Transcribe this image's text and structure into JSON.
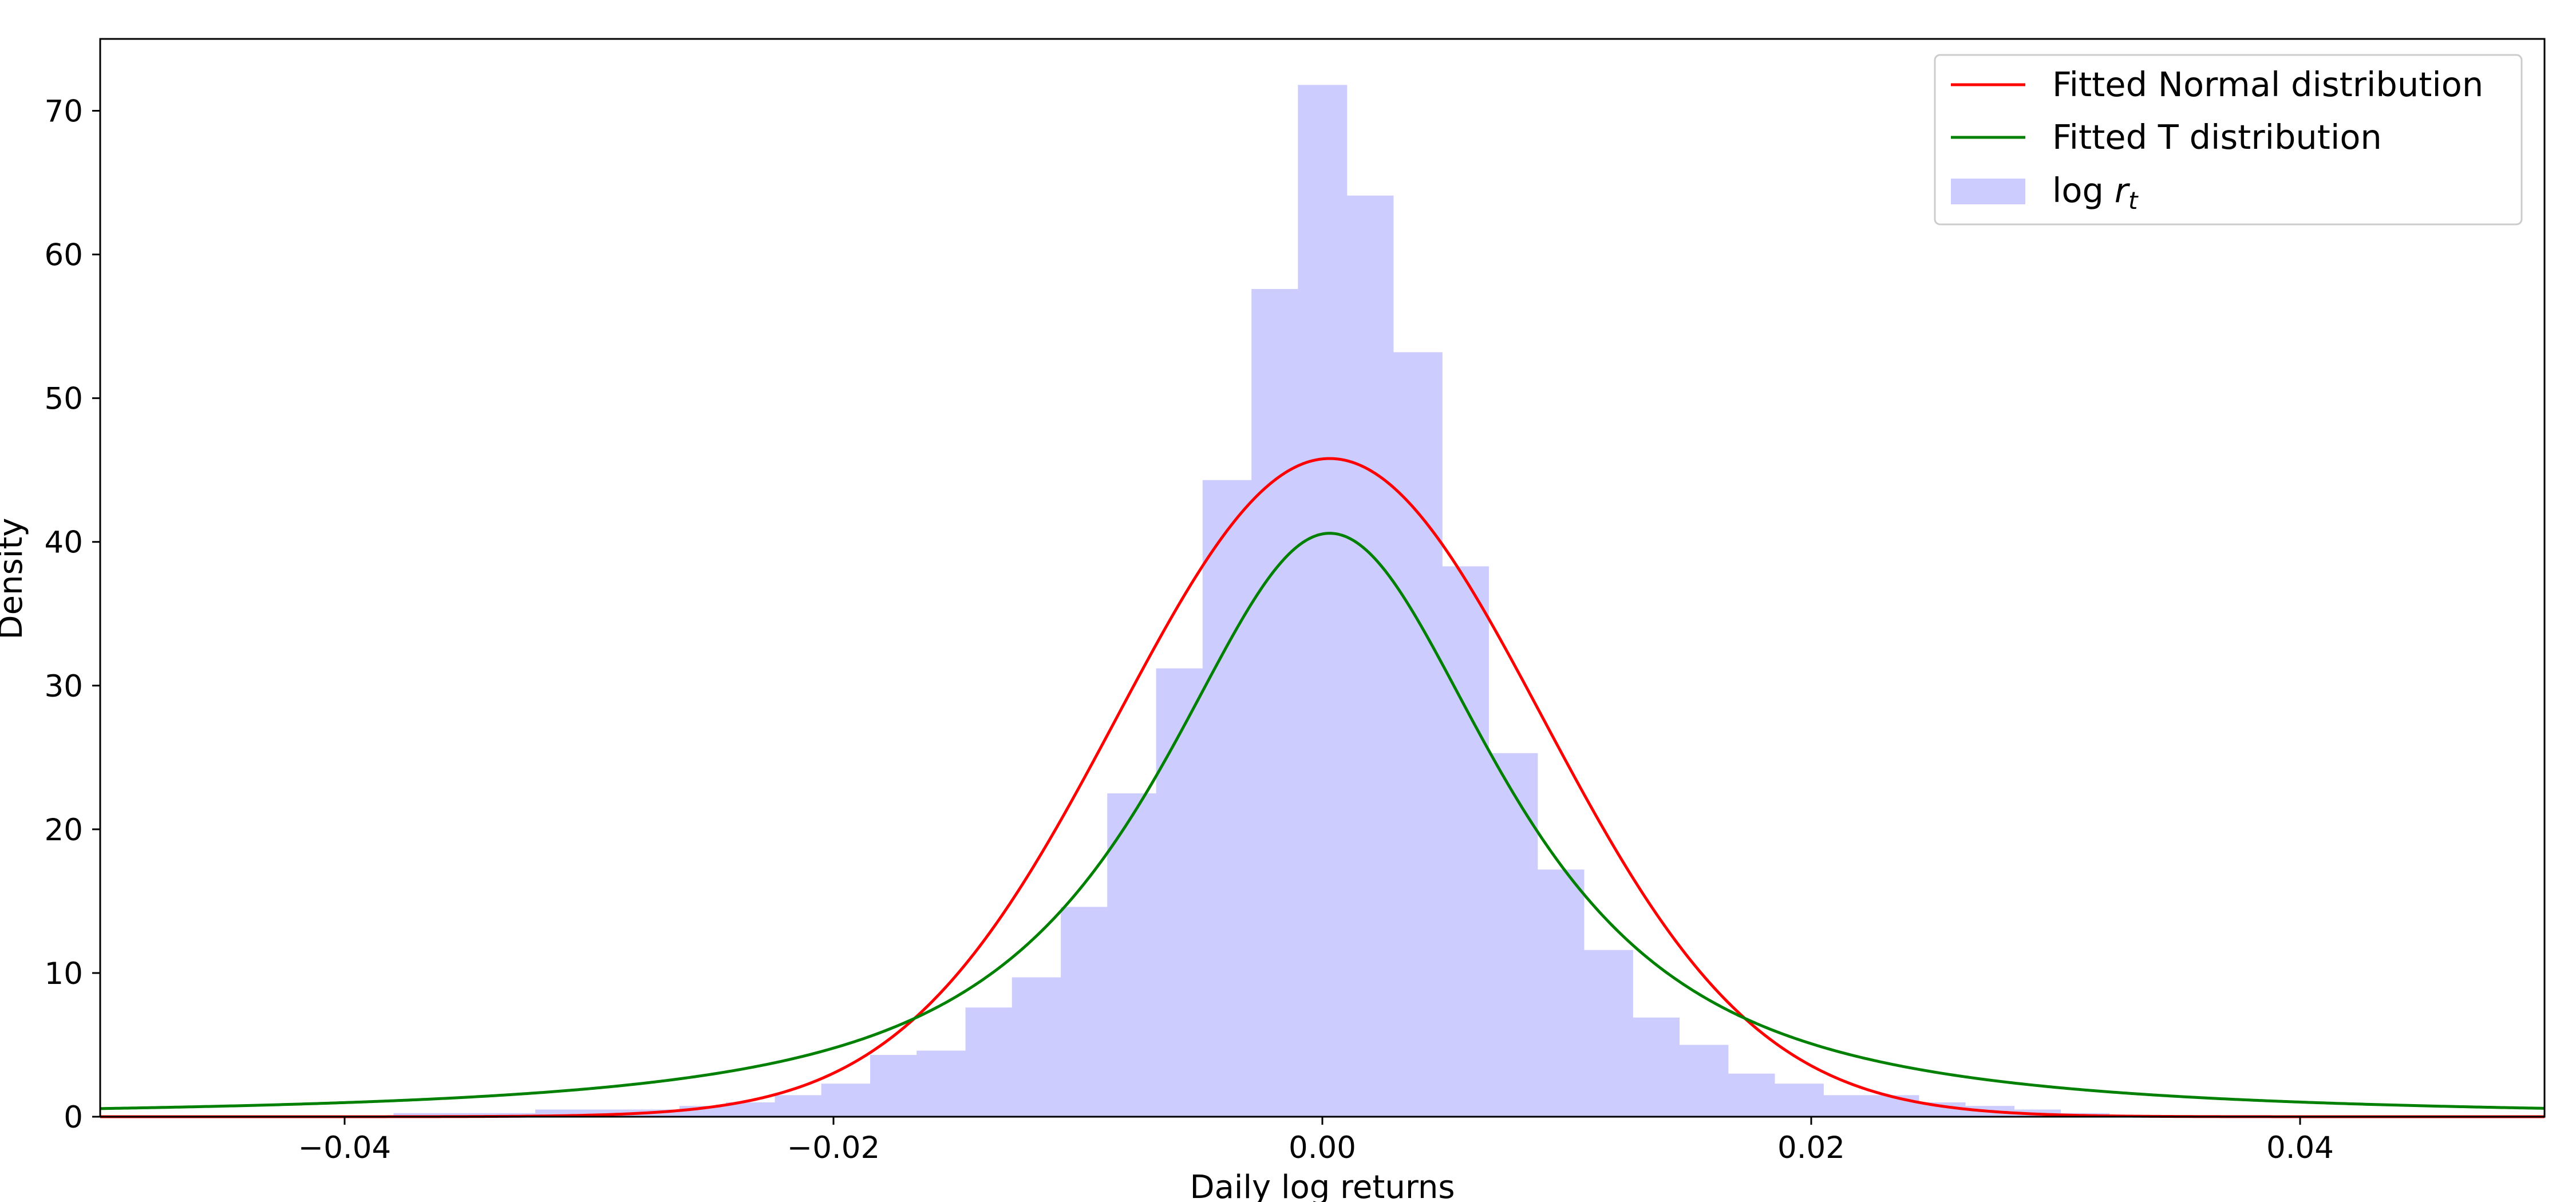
{
  "chart_data": {
    "type": "bar",
    "title": "",
    "xlabel": "Daily log returns",
    "ylabel": "Density",
    "xlim": [
      -0.05,
      0.05
    ],
    "ylim": [
      0,
      75
    ],
    "xticks": [
      -0.04,
      -0.02,
      0.0,
      0.02,
      0.04
    ],
    "xtick_labels": [
      "−0.04",
      "−0.02",
      "0.00",
      "0.02",
      "0.04"
    ],
    "yticks": [
      0,
      10,
      20,
      30,
      40,
      50,
      60,
      70
    ],
    "ytick_labels": [
      "0",
      "10",
      "20",
      "30",
      "40",
      "50",
      "60",
      "70"
    ],
    "grid": false,
    "legend_position": "top-right",
    "histogram": {
      "name": "log r_t",
      "legend_label_main": "log ",
      "legend_label_var": "r",
      "legend_label_sub": "t",
      "color": "#ccccff",
      "bins": [
        {
          "x0": -0.038,
          "x1": -0.0361,
          "value": 0.25
        },
        {
          "x0": -0.0361,
          "x1": -0.0341,
          "value": 0.25
        },
        {
          "x0": -0.0341,
          "x1": -0.0322,
          "value": 0.25
        },
        {
          "x0": -0.0322,
          "x1": -0.0302,
          "value": 0.5
        },
        {
          "x0": -0.0302,
          "x1": -0.0283,
          "value": 0.5
        },
        {
          "x0": -0.0283,
          "x1": -0.0263,
          "value": 0.5
        },
        {
          "x0": -0.0263,
          "x1": -0.0244,
          "value": 0.75
        },
        {
          "x0": -0.0244,
          "x1": -0.0224,
          "value": 1.0
        },
        {
          "x0": -0.0224,
          "x1": -0.0205,
          "value": 1.5
        },
        {
          "x0": -0.0205,
          "x1": -0.0185,
          "value": 2.3
        },
        {
          "x0": -0.0185,
          "x1": -0.0166,
          "value": 4.3
        },
        {
          "x0": -0.0166,
          "x1": -0.0146,
          "value": 4.6
        },
        {
          "x0": -0.0146,
          "x1": -0.0127,
          "value": 7.6
        },
        {
          "x0": -0.0127,
          "x1": -0.0107,
          "value": 9.7
        },
        {
          "x0": -0.0107,
          "x1": -0.0088,
          "value": 14.6
        },
        {
          "x0": -0.0088,
          "x1": -0.0068,
          "value": 22.5
        },
        {
          "x0": -0.0068,
          "x1": -0.0049,
          "value": 31.2
        },
        {
          "x0": -0.0049,
          "x1": -0.0029,
          "value": 44.3
        },
        {
          "x0": -0.0029,
          "x1": -0.001,
          "value": 57.6
        },
        {
          "x0": -0.001,
          "x1": 0.001,
          "value": 71.8
        },
        {
          "x0": 0.001,
          "x1": 0.0029,
          "value": 64.1
        },
        {
          "x0": 0.0029,
          "x1": 0.0049,
          "value": 53.2
        },
        {
          "x0": 0.0049,
          "x1": 0.0068,
          "value": 38.3
        },
        {
          "x0": 0.0068,
          "x1": 0.0088,
          "value": 25.3
        },
        {
          "x0": 0.0088,
          "x1": 0.0107,
          "value": 17.2
        },
        {
          "x0": 0.0107,
          "x1": 0.0127,
          "value": 11.6
        },
        {
          "x0": 0.0127,
          "x1": 0.0146,
          "value": 6.9
        },
        {
          "x0": 0.0146,
          "x1": 0.0166,
          "value": 5.0
        },
        {
          "x0": 0.0166,
          "x1": 0.0185,
          "value": 3.0
        },
        {
          "x0": 0.0185,
          "x1": 0.0205,
          "value": 2.3
        },
        {
          "x0": 0.0205,
          "x1": 0.0224,
          "value": 1.5
        },
        {
          "x0": 0.0224,
          "x1": 0.0244,
          "value": 1.5
        },
        {
          "x0": 0.0244,
          "x1": 0.0263,
          "value": 1.0
        },
        {
          "x0": 0.0263,
          "x1": 0.0283,
          "value": 0.75
        },
        {
          "x0": 0.0283,
          "x1": 0.0302,
          "value": 0.5
        },
        {
          "x0": 0.0302,
          "x1": 0.0322,
          "value": 0.25
        }
      ]
    },
    "series": [
      {
        "name": "Fitted Normal distribution",
        "kind": "normal",
        "color": "#ff0000",
        "mean": 0.0003,
        "peak_density": 45.8
      },
      {
        "name": "Fitted T distribution",
        "kind": "student_t",
        "color": "#008000",
        "loc": 0.0003,
        "peak_density": 40.6,
        "df": 1.6
      }
    ]
  }
}
